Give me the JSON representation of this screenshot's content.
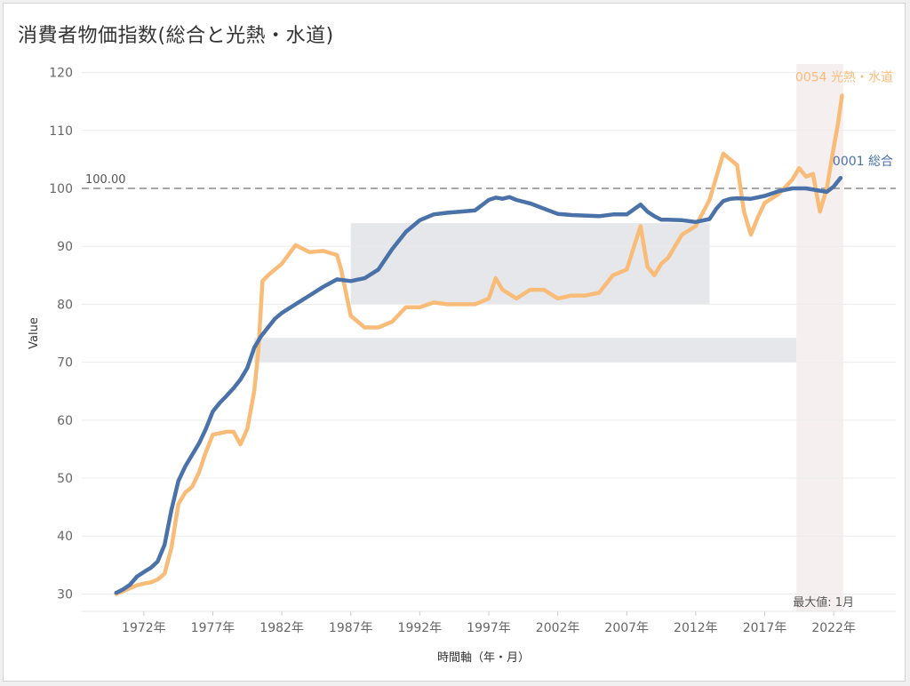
{
  "title": "消費者物価指数(総合と光熱・水道)",
  "chart_data": {
    "type": "line",
    "title": "消費者物価指数(総合と光熱・水道)",
    "xlabel": "時間軸（年・月）",
    "ylabel": "Value",
    "ylim": [
      27,
      123
    ],
    "xlim": [
      1967.5,
      2026.5
    ],
    "y_ticks": [
      30,
      40,
      50,
      60,
      70,
      80,
      90,
      100,
      110,
      120
    ],
    "x_ticks": [
      {
        "value": 1972,
        "label": "1972年"
      },
      {
        "value": 1977,
        "label": "1977年"
      },
      {
        "value": 1982,
        "label": "1982年"
      },
      {
        "value": 1987,
        "label": "1987年"
      },
      {
        "value": 1992,
        "label": "1992年"
      },
      {
        "value": 1997,
        "label": "1997年"
      },
      {
        "value": 2002,
        "label": "2002年"
      },
      {
        "value": 2007,
        "label": "2007年"
      },
      {
        "value": 2012,
        "label": "2012年"
      },
      {
        "value": 2017,
        "label": "2017年"
      },
      {
        "value": 2022,
        "label": "2022年"
      }
    ],
    "grid": true,
    "reference_line": {
      "value": 100,
      "label": "100.00"
    },
    "bands": [
      {
        "x_start": 1987.0,
        "x_end": 2013.0,
        "y_low": 80,
        "y_high": 94
      },
      {
        "x_start": 1980.0,
        "x_end": 2019.3,
        "y_low": 70,
        "y_high": 74.2
      }
    ],
    "highlight_region": {
      "x_start": 2019.3,
      "x_end": 2022.7,
      "label": "最大値: 1月"
    },
    "series": [
      {
        "name": "0001 総合",
        "color": "#4a72a8",
        "x": [
          1970.0,
          1970.5,
          1971.0,
          1971.5,
          1972.0,
          1972.5,
          1973.0,
          1973.5,
          1974.0,
          1974.5,
          1975.0,
          1975.5,
          1976.0,
          1976.5,
          1977.0,
          1977.5,
          1978.0,
          1978.5,
          1979.0,
          1979.5,
          1980.0,
          1980.5,
          1981.0,
          1981.5,
          1982.0,
          1983.0,
          1984.0,
          1985.0,
          1986.0,
          1987.0,
          1988.0,
          1989.0,
          1990.0,
          1991.0,
          1992.0,
          1993.0,
          1994.0,
          1995.0,
          1996.0,
          1997.0,
          1997.5,
          1998.0,
          1998.5,
          1999.0,
          2000.0,
          2001.0,
          2002.0,
          2003.0,
          2004.0,
          2005.0,
          2006.0,
          2007.0,
          2008.0,
          2008.5,
          2009.0,
          2009.5,
          2010.0,
          2011.0,
          2012.0,
          2013.0,
          2013.5,
          2014.0,
          2014.5,
          2015.0,
          2016.0,
          2017.0,
          2018.0,
          2019.0,
          2020.0,
          2021.0,
          2021.5,
          2022.0,
          2022.5
        ],
        "values": [
          30.2,
          30.8,
          31.6,
          33.0,
          33.8,
          34.5,
          35.6,
          38.5,
          44.5,
          49.5,
          52.0,
          54.0,
          56.0,
          58.5,
          61.5,
          63.0,
          64.2,
          65.5,
          67.0,
          69.0,
          72.5,
          74.5,
          76.0,
          77.5,
          78.5,
          80.0,
          81.5,
          83.0,
          84.3,
          84.0,
          84.5,
          86.0,
          89.5,
          92.5,
          94.5,
          95.5,
          95.8,
          96.0,
          96.2,
          98.0,
          98.4,
          98.2,
          98.5,
          98.0,
          97.4,
          96.5,
          95.6,
          95.4,
          95.3,
          95.2,
          95.5,
          95.5,
          97.2,
          96.0,
          95.2,
          94.6,
          94.6,
          94.5,
          94.2,
          94.7,
          96.5,
          97.8,
          98.2,
          98.3,
          98.2,
          98.7,
          99.5,
          100.0,
          100.0,
          99.6,
          99.4,
          100.3,
          101.8
        ]
      },
      {
        "name": "0054 光熱・水道",
        "color": "#f9bb78",
        "x": [
          1970.0,
          1970.5,
          1971.0,
          1971.5,
          1972.0,
          1972.5,
          1973.0,
          1973.5,
          1974.0,
          1974.5,
          1975.0,
          1975.5,
          1976.0,
          1976.5,
          1977.0,
          1978.0,
          1978.5,
          1979.0,
          1979.5,
          1980.0,
          1980.3,
          1980.6,
          1981.0,
          1982.0,
          1983.0,
          1984.0,
          1985.0,
          1986.0,
          1986.3,
          1987.0,
          1988.0,
          1989.0,
          1990.0,
          1991.0,
          1992.0,
          1993.0,
          1994.0,
          1995.0,
          1996.0,
          1997.0,
          1997.5,
          1998.0,
          1999.0,
          2000.0,
          2001.0,
          2002.0,
          2003.0,
          2004.0,
          2005.0,
          2006.0,
          2007.0,
          2008.0,
          2008.5,
          2009.0,
          2009.5,
          2010.0,
          2011.0,
          2012.0,
          2013.0,
          2014.0,
          2014.5,
          2015.0,
          2015.5,
          2016.0,
          2016.5,
          2017.0,
          2018.0,
          2019.0,
          2019.5,
          2020.0,
          2020.5,
          2021.0,
          2021.5,
          2022.0,
          2022.3,
          2022.6
        ],
        "values": [
          30.0,
          30.5,
          31.0,
          31.5,
          31.8,
          32.0,
          32.5,
          33.5,
          38.0,
          45.5,
          47.5,
          48.5,
          51.0,
          54.5,
          57.5,
          58.0,
          58.0,
          55.8,
          58.5,
          65.0,
          72.0,
          84.0,
          85.0,
          87.0,
          90.2,
          89.0,
          89.2,
          88.5,
          86.0,
          78.0,
          76.0,
          76.0,
          77.0,
          79.5,
          79.5,
          80.3,
          80.0,
          80.0,
          80.0,
          81.0,
          84.5,
          82.5,
          81.0,
          82.5,
          82.5,
          81.0,
          81.5,
          81.5,
          82.0,
          85.0,
          86.0,
          93.5,
          86.5,
          85.0,
          87.0,
          88.0,
          92.0,
          93.5,
          98.0,
          106.0,
          105.0,
          104.0,
          96.0,
          92.0,
          95.0,
          97.5,
          99.0,
          101.5,
          103.5,
          102.0,
          102.5,
          96.0,
          100.0,
          107.0,
          111.0,
          116.0
        ]
      }
    ]
  }
}
